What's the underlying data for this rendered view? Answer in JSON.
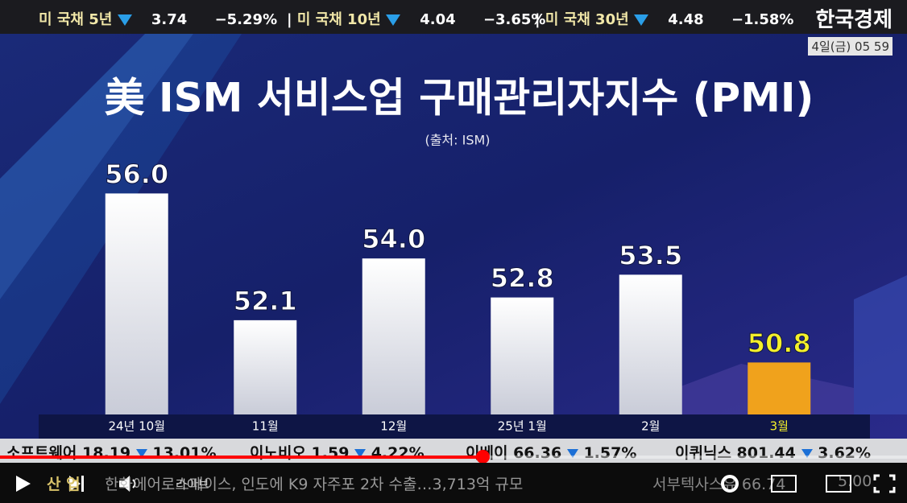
{
  "ticker": [
    {
      "name": "미 국채 5년",
      "price": "3.74",
      "change": "−5.29%"
    },
    {
      "name": "미 국채 10년",
      "price": "4.04",
      "change": "−3.65%"
    },
    {
      "name": "미 국채 30년",
      "price": "4.48",
      "change": "−1.58%"
    }
  ],
  "header": {
    "logo": "한국경제",
    "date": "4일(금) 05 59"
  },
  "chart_data": {
    "type": "bar",
    "title": "美 ISM 서비스업 구매관리자지수 (PMI)",
    "subtitle": "(출처: ISM)",
    "categories": [
      "24년 10월",
      "11월",
      "12월",
      "25년 1월",
      "2월",
      "3월"
    ],
    "values": [
      56.0,
      52.1,
      54.0,
      52.8,
      53.5,
      50.8
    ],
    "value_labels": [
      "56.0",
      "52.1",
      "54.0",
      "52.8",
      "53.5",
      "50.8"
    ],
    "colors": [
      "#ffffff",
      "#ffffff",
      "#ffffff",
      "#ffffff",
      "#ffffff",
      "#f0a21c"
    ],
    "label_colors": [
      "#ffffff",
      "#ffffff",
      "#ffffff",
      "#ffffff",
      "#ffffff",
      "#f4f02a"
    ],
    "ylim": [
      49.2,
      57
    ]
  },
  "stocks": [
    {
      "name": "소프트웨어",
      "price": "18.19",
      "change": "13.01%"
    },
    {
      "name": "이노비오",
      "price": "1.59",
      "change": "4.22%"
    },
    {
      "name": "이베이",
      "price": "66.36",
      "change": "1.57%"
    },
    {
      "name": "이퀴닉스",
      "price": "801.44",
      "change": "3.62%"
    }
  ],
  "news": {
    "section": "산 업",
    "headline": "한화에어로스페이스, 인도에 K9 자주포 2차 수출…3,713억 규모",
    "side": "서부텍사스유 66.74",
    "side_change": "5.00"
  },
  "player": {
    "live": "라이브"
  }
}
